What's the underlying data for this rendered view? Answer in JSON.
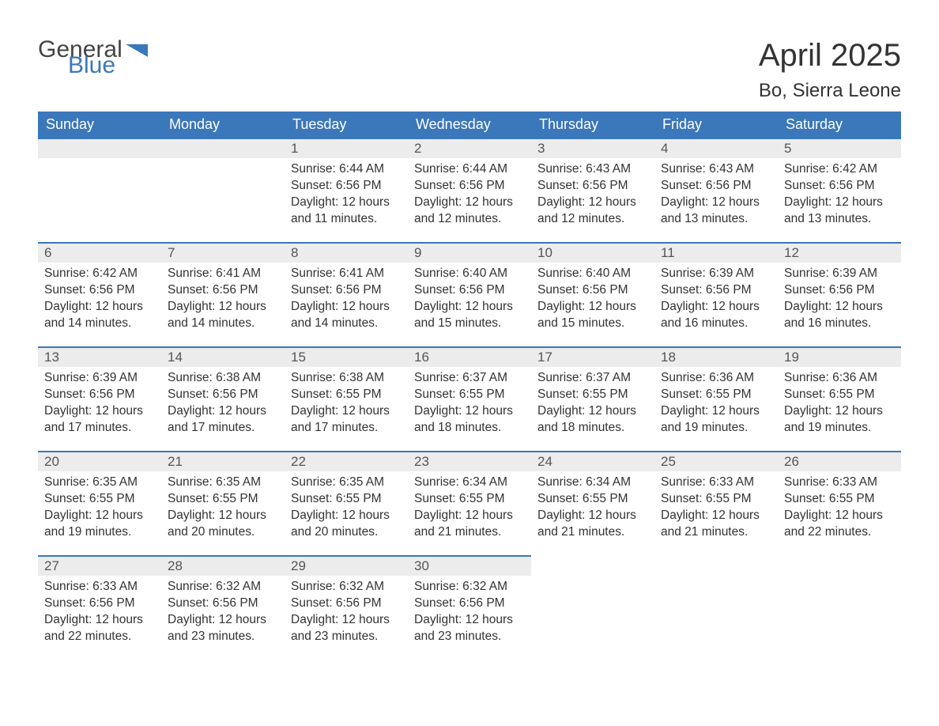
{
  "brand": {
    "name1": "General",
    "name2": "Blue",
    "flag_color": "#3b77bb"
  },
  "title": "April 2025",
  "location": "Bo, Sierra Leone",
  "colors": {
    "header_bg": "#3b77bb",
    "header_text": "#ffffff",
    "daybar_bg": "#ececec",
    "daybar_border": "#3b77bb",
    "text": "#333333",
    "background": "#ffffff"
  },
  "typography": {
    "title_fontsize": 40,
    "location_fontsize": 24,
    "weekday_fontsize": 18,
    "daynum_fontsize": 17,
    "body_fontsize": 15.5
  },
  "layout": {
    "columns": 7,
    "rows": 5,
    "first_weekday": "Sunday"
  },
  "weekday_labels": [
    "Sunday",
    "Monday",
    "Tuesday",
    "Wednesday",
    "Thursday",
    "Friday",
    "Saturday"
  ],
  "days": [
    null,
    null,
    {
      "num": "1",
      "sunrise": "Sunrise: 6:44 AM",
      "sunset": "Sunset: 6:56 PM",
      "daylight1": "Daylight: 12 hours",
      "daylight2": "and 11 minutes."
    },
    {
      "num": "2",
      "sunrise": "Sunrise: 6:44 AM",
      "sunset": "Sunset: 6:56 PM",
      "daylight1": "Daylight: 12 hours",
      "daylight2": "and 12 minutes."
    },
    {
      "num": "3",
      "sunrise": "Sunrise: 6:43 AM",
      "sunset": "Sunset: 6:56 PM",
      "daylight1": "Daylight: 12 hours",
      "daylight2": "and 12 minutes."
    },
    {
      "num": "4",
      "sunrise": "Sunrise: 6:43 AM",
      "sunset": "Sunset: 6:56 PM",
      "daylight1": "Daylight: 12 hours",
      "daylight2": "and 13 minutes."
    },
    {
      "num": "5",
      "sunrise": "Sunrise: 6:42 AM",
      "sunset": "Sunset: 6:56 PM",
      "daylight1": "Daylight: 12 hours",
      "daylight2": "and 13 minutes."
    },
    {
      "num": "6",
      "sunrise": "Sunrise: 6:42 AM",
      "sunset": "Sunset: 6:56 PM",
      "daylight1": "Daylight: 12 hours",
      "daylight2": "and 14 minutes."
    },
    {
      "num": "7",
      "sunrise": "Sunrise: 6:41 AM",
      "sunset": "Sunset: 6:56 PM",
      "daylight1": "Daylight: 12 hours",
      "daylight2": "and 14 minutes."
    },
    {
      "num": "8",
      "sunrise": "Sunrise: 6:41 AM",
      "sunset": "Sunset: 6:56 PM",
      "daylight1": "Daylight: 12 hours",
      "daylight2": "and 14 minutes."
    },
    {
      "num": "9",
      "sunrise": "Sunrise: 6:40 AM",
      "sunset": "Sunset: 6:56 PM",
      "daylight1": "Daylight: 12 hours",
      "daylight2": "and 15 minutes."
    },
    {
      "num": "10",
      "sunrise": "Sunrise: 6:40 AM",
      "sunset": "Sunset: 6:56 PM",
      "daylight1": "Daylight: 12 hours",
      "daylight2": "and 15 minutes."
    },
    {
      "num": "11",
      "sunrise": "Sunrise: 6:39 AM",
      "sunset": "Sunset: 6:56 PM",
      "daylight1": "Daylight: 12 hours",
      "daylight2": "and 16 minutes."
    },
    {
      "num": "12",
      "sunrise": "Sunrise: 6:39 AM",
      "sunset": "Sunset: 6:56 PM",
      "daylight1": "Daylight: 12 hours",
      "daylight2": "and 16 minutes."
    },
    {
      "num": "13",
      "sunrise": "Sunrise: 6:39 AM",
      "sunset": "Sunset: 6:56 PM",
      "daylight1": "Daylight: 12 hours",
      "daylight2": "and 17 minutes."
    },
    {
      "num": "14",
      "sunrise": "Sunrise: 6:38 AM",
      "sunset": "Sunset: 6:56 PM",
      "daylight1": "Daylight: 12 hours",
      "daylight2": "and 17 minutes."
    },
    {
      "num": "15",
      "sunrise": "Sunrise: 6:38 AM",
      "sunset": "Sunset: 6:55 PM",
      "daylight1": "Daylight: 12 hours",
      "daylight2": "and 17 minutes."
    },
    {
      "num": "16",
      "sunrise": "Sunrise: 6:37 AM",
      "sunset": "Sunset: 6:55 PM",
      "daylight1": "Daylight: 12 hours",
      "daylight2": "and 18 minutes."
    },
    {
      "num": "17",
      "sunrise": "Sunrise: 6:37 AM",
      "sunset": "Sunset: 6:55 PM",
      "daylight1": "Daylight: 12 hours",
      "daylight2": "and 18 minutes."
    },
    {
      "num": "18",
      "sunrise": "Sunrise: 6:36 AM",
      "sunset": "Sunset: 6:55 PM",
      "daylight1": "Daylight: 12 hours",
      "daylight2": "and 19 minutes."
    },
    {
      "num": "19",
      "sunrise": "Sunrise: 6:36 AM",
      "sunset": "Sunset: 6:55 PM",
      "daylight1": "Daylight: 12 hours",
      "daylight2": "and 19 minutes."
    },
    {
      "num": "20",
      "sunrise": "Sunrise: 6:35 AM",
      "sunset": "Sunset: 6:55 PM",
      "daylight1": "Daylight: 12 hours",
      "daylight2": "and 19 minutes."
    },
    {
      "num": "21",
      "sunrise": "Sunrise: 6:35 AM",
      "sunset": "Sunset: 6:55 PM",
      "daylight1": "Daylight: 12 hours",
      "daylight2": "and 20 minutes."
    },
    {
      "num": "22",
      "sunrise": "Sunrise: 6:35 AM",
      "sunset": "Sunset: 6:55 PM",
      "daylight1": "Daylight: 12 hours",
      "daylight2": "and 20 minutes."
    },
    {
      "num": "23",
      "sunrise": "Sunrise: 6:34 AM",
      "sunset": "Sunset: 6:55 PM",
      "daylight1": "Daylight: 12 hours",
      "daylight2": "and 21 minutes."
    },
    {
      "num": "24",
      "sunrise": "Sunrise: 6:34 AM",
      "sunset": "Sunset: 6:55 PM",
      "daylight1": "Daylight: 12 hours",
      "daylight2": "and 21 minutes."
    },
    {
      "num": "25",
      "sunrise": "Sunrise: 6:33 AM",
      "sunset": "Sunset: 6:55 PM",
      "daylight1": "Daylight: 12 hours",
      "daylight2": "and 21 minutes."
    },
    {
      "num": "26",
      "sunrise": "Sunrise: 6:33 AM",
      "sunset": "Sunset: 6:55 PM",
      "daylight1": "Daylight: 12 hours",
      "daylight2": "and 22 minutes."
    },
    {
      "num": "27",
      "sunrise": "Sunrise: 6:33 AM",
      "sunset": "Sunset: 6:56 PM",
      "daylight1": "Daylight: 12 hours",
      "daylight2": "and 22 minutes."
    },
    {
      "num": "28",
      "sunrise": "Sunrise: 6:32 AM",
      "sunset": "Sunset: 6:56 PM",
      "daylight1": "Daylight: 12 hours",
      "daylight2": "and 23 minutes."
    },
    {
      "num": "29",
      "sunrise": "Sunrise: 6:32 AM",
      "sunset": "Sunset: 6:56 PM",
      "daylight1": "Daylight: 12 hours",
      "daylight2": "and 23 minutes."
    },
    {
      "num": "30",
      "sunrise": "Sunrise: 6:32 AM",
      "sunset": "Sunset: 6:56 PM",
      "daylight1": "Daylight: 12 hours",
      "daylight2": "and 23 minutes."
    },
    null,
    null,
    null
  ]
}
